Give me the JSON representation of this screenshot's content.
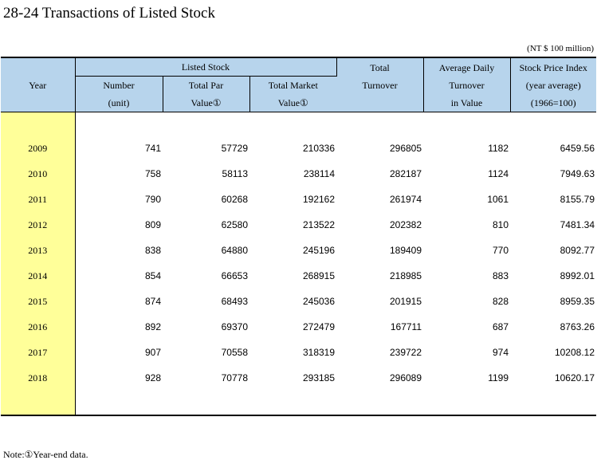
{
  "title": "28-24  Transactions of Listed Stock",
  "unit_note": "(NT $ 100 million)",
  "headers": {
    "year": "Year",
    "listed_stock": "Listed Stock",
    "number": [
      "Number",
      "(unit)"
    ],
    "total_par": [
      "Total Par",
      "Value①"
    ],
    "total_market": [
      "Total Market",
      "Value①"
    ],
    "total_turnover": [
      "Total",
      "Turnover"
    ],
    "avg_daily": [
      "Average Daily",
      "Turnover",
      "in Value"
    ],
    "stock_price_index": [
      "Stock Price Index",
      "(year average)",
      "(1966=100)"
    ]
  },
  "rows": [
    {
      "year": "2009",
      "number": "741",
      "par": "57729",
      "market": "210336",
      "turnover": "296805",
      "avg": "1182",
      "index": "6459.56"
    },
    {
      "year": "2010",
      "number": "758",
      "par": "58113",
      "market": "238114",
      "turnover": "282187",
      "avg": "1124",
      "index": "7949.63"
    },
    {
      "year": "2011",
      "number": "790",
      "par": "60268",
      "market": "192162",
      "turnover": "261974",
      "avg": "1061",
      "index": "8155.79"
    },
    {
      "year": "2012",
      "number": "809",
      "par": "62580",
      "market": "213522",
      "turnover": "202382",
      "avg": "810",
      "index": "7481.34"
    },
    {
      "year": "2013",
      "number": "838",
      "par": "64880",
      "market": "245196",
      "turnover": "189409",
      "avg": "770",
      "index": "8092.77"
    },
    {
      "year": "2014",
      "number": "854",
      "par": "66653",
      "market": "268915",
      "turnover": "218985",
      "avg": "883",
      "index": "8992.01"
    },
    {
      "year": "2015",
      "number": "874",
      "par": "68493",
      "market": "245036",
      "turnover": "201915",
      "avg": "828",
      "index": "8959.35"
    },
    {
      "year": "2016",
      "number": "892",
      "par": "69370",
      "market": "272479",
      "turnover": "167711",
      "avg": "687",
      "index": "8763.26"
    },
    {
      "year": "2017",
      "number": "907",
      "par": "70558",
      "market": "318319",
      "turnover": "239722",
      "avg": "974",
      "index": "10208.12"
    },
    {
      "year": "2018",
      "number": "928",
      "par": "70778",
      "market": "293185",
      "turnover": "296089",
      "avg": "1199",
      "index": "10620.17"
    }
  ],
  "note": "Note:①Year-end data.",
  "colors": {
    "header_bg": "#b7d4ec",
    "year_bg": "#ffff99"
  }
}
